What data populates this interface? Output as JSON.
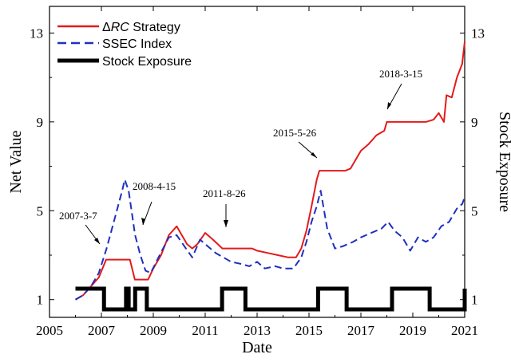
{
  "chart_data": {
    "type": "line",
    "title": "",
    "xlabel": "Date",
    "ylabel_left": "Net Value",
    "ylabel_right": "Stock Exposure",
    "xlim": [
      2005,
      2021
    ],
    "ylim_left": [
      0.2,
      14.2
    ],
    "ylim_right": [
      0.2,
      14.2
    ],
    "x_ticks": [
      "2005",
      "2007",
      "2009",
      "2011",
      "2013",
      "2015",
      "2017",
      "2019",
      "2021"
    ],
    "y_ticks_left": [
      "1",
      "5",
      "9",
      "13"
    ],
    "y_ticks_right": [
      "1",
      "5",
      "9",
      "13"
    ],
    "grid": false,
    "legend": {
      "position": "top-left",
      "entries": [
        {
          "prefix": "Δ",
          "italic": "RC",
          "suffix": " Strategy",
          "color": "#e41a1c",
          "style": "solid"
        },
        {
          "label": "SSEC Index",
          "color": "#1f2fbf",
          "style": "dashed"
        },
        {
          "label": "Stock Exposure",
          "color": "#000000",
          "style": "solid-thick"
        }
      ]
    },
    "series": [
      {
        "name": "ΔRC Strategy",
        "color": "#e41a1c",
        "x": [
          2006.0,
          2006.3,
          2006.6,
          2006.9,
          2007.18,
          2007.5,
          2007.9,
          2008.1,
          2008.29,
          2008.5,
          2008.8,
          2009.0,
          2009.3,
          2009.6,
          2009.9,
          2010.1,
          2010.3,
          2010.5,
          2010.7,
          2011.0,
          2011.3,
          2011.66,
          2012.0,
          2012.4,
          2012.8,
          2013.0,
          2013.4,
          2013.8,
          2014.2,
          2014.5,
          2014.7,
          2014.9,
          2015.1,
          2015.3,
          2015.4,
          2015.6,
          2016.0,
          2016.4,
          2016.6,
          2016.8,
          2017.0,
          2017.3,
          2017.6,
          2017.9,
          2018.0,
          2018.2,
          2018.5,
          2019.0,
          2019.5,
          2019.8,
          2020.0,
          2020.2,
          2020.3,
          2020.5,
          2020.7,
          2020.9,
          2021.0
        ],
        "y": [
          1.0,
          1.2,
          1.6,
          2.0,
          2.8,
          2.8,
          2.8,
          2.8,
          1.9,
          1.9,
          1.9,
          2.4,
          3.0,
          3.9,
          4.3,
          3.9,
          3.5,
          3.3,
          3.5,
          4.0,
          3.7,
          3.3,
          3.3,
          3.3,
          3.3,
          3.2,
          3.1,
          3.0,
          2.9,
          2.9,
          3.3,
          4.1,
          5.2,
          6.4,
          6.8,
          6.8,
          6.8,
          6.8,
          6.9,
          7.3,
          7.7,
          8.0,
          8.4,
          8.6,
          9.0,
          9.0,
          9.0,
          9.0,
          9.0,
          9.1,
          9.4,
          9.0,
          10.2,
          10.1,
          11.0,
          11.6,
          12.6
        ]
      },
      {
        "name": "SSEC Index",
        "color": "#1f2fbf",
        "x": [
          2006.0,
          2006.3,
          2006.6,
          2006.9,
          2007.2,
          2007.5,
          2007.8,
          2007.9,
          2008.05,
          2008.3,
          2008.5,
          2008.7,
          2008.9,
          2009.2,
          2009.6,
          2009.9,
          2010.2,
          2010.5,
          2010.8,
          2011.1,
          2011.4,
          2011.7,
          2012.0,
          2012.4,
          2012.7,
          2013.0,
          2013.3,
          2013.7,
          2014.0,
          2014.4,
          2014.7,
          2014.9,
          2015.1,
          2015.3,
          2015.45,
          2015.7,
          2016.0,
          2016.3,
          2016.7,
          2017.0,
          2017.4,
          2017.8,
          2018.05,
          2018.3,
          2018.6,
          2018.9,
          2019.2,
          2019.5,
          2019.8,
          2020.1,
          2020.4,
          2020.7,
          2020.9,
          2021.0
        ],
        "y": [
          1.0,
          1.2,
          1.6,
          2.2,
          3.3,
          4.6,
          5.9,
          6.4,
          5.9,
          3.9,
          3.0,
          2.3,
          2.2,
          2.9,
          3.8,
          3.9,
          3.4,
          2.9,
          3.7,
          3.4,
          3.1,
          2.9,
          2.7,
          2.6,
          2.5,
          2.7,
          2.4,
          2.5,
          2.4,
          2.4,
          2.9,
          3.6,
          4.5,
          5.2,
          5.9,
          4.2,
          3.3,
          3.4,
          3.6,
          3.8,
          4.0,
          4.2,
          4.5,
          4.1,
          3.8,
          3.2,
          3.8,
          3.6,
          3.8,
          4.3,
          4.5,
          5.1,
          5.3,
          5.6
        ]
      },
      {
        "name": "Stock Exposure",
        "color": "#000000",
        "step": true,
        "x": [
          2006.0,
          2007.1,
          2007.95,
          2008.05,
          2008.3,
          2008.75,
          2011.65,
          2012.55,
          2015.35,
          2016.45,
          2018.2,
          2019.65,
          2021.0
        ],
        "y": [
          1,
          0,
          1,
          0,
          1,
          0,
          1,
          0,
          1,
          0,
          1,
          0,
          1
        ]
      }
    ],
    "annotations": [
      {
        "label": "2007-3-7",
        "x": 2007.18
      },
      {
        "label": "2008-4-15",
        "x": 2008.29
      },
      {
        "label": "2011-8-26",
        "x": 2011.65
      },
      {
        "label": "2015-5-26",
        "x": 2015.4
      },
      {
        "label": "2018-3-15",
        "x": 2018.2
      }
    ]
  }
}
